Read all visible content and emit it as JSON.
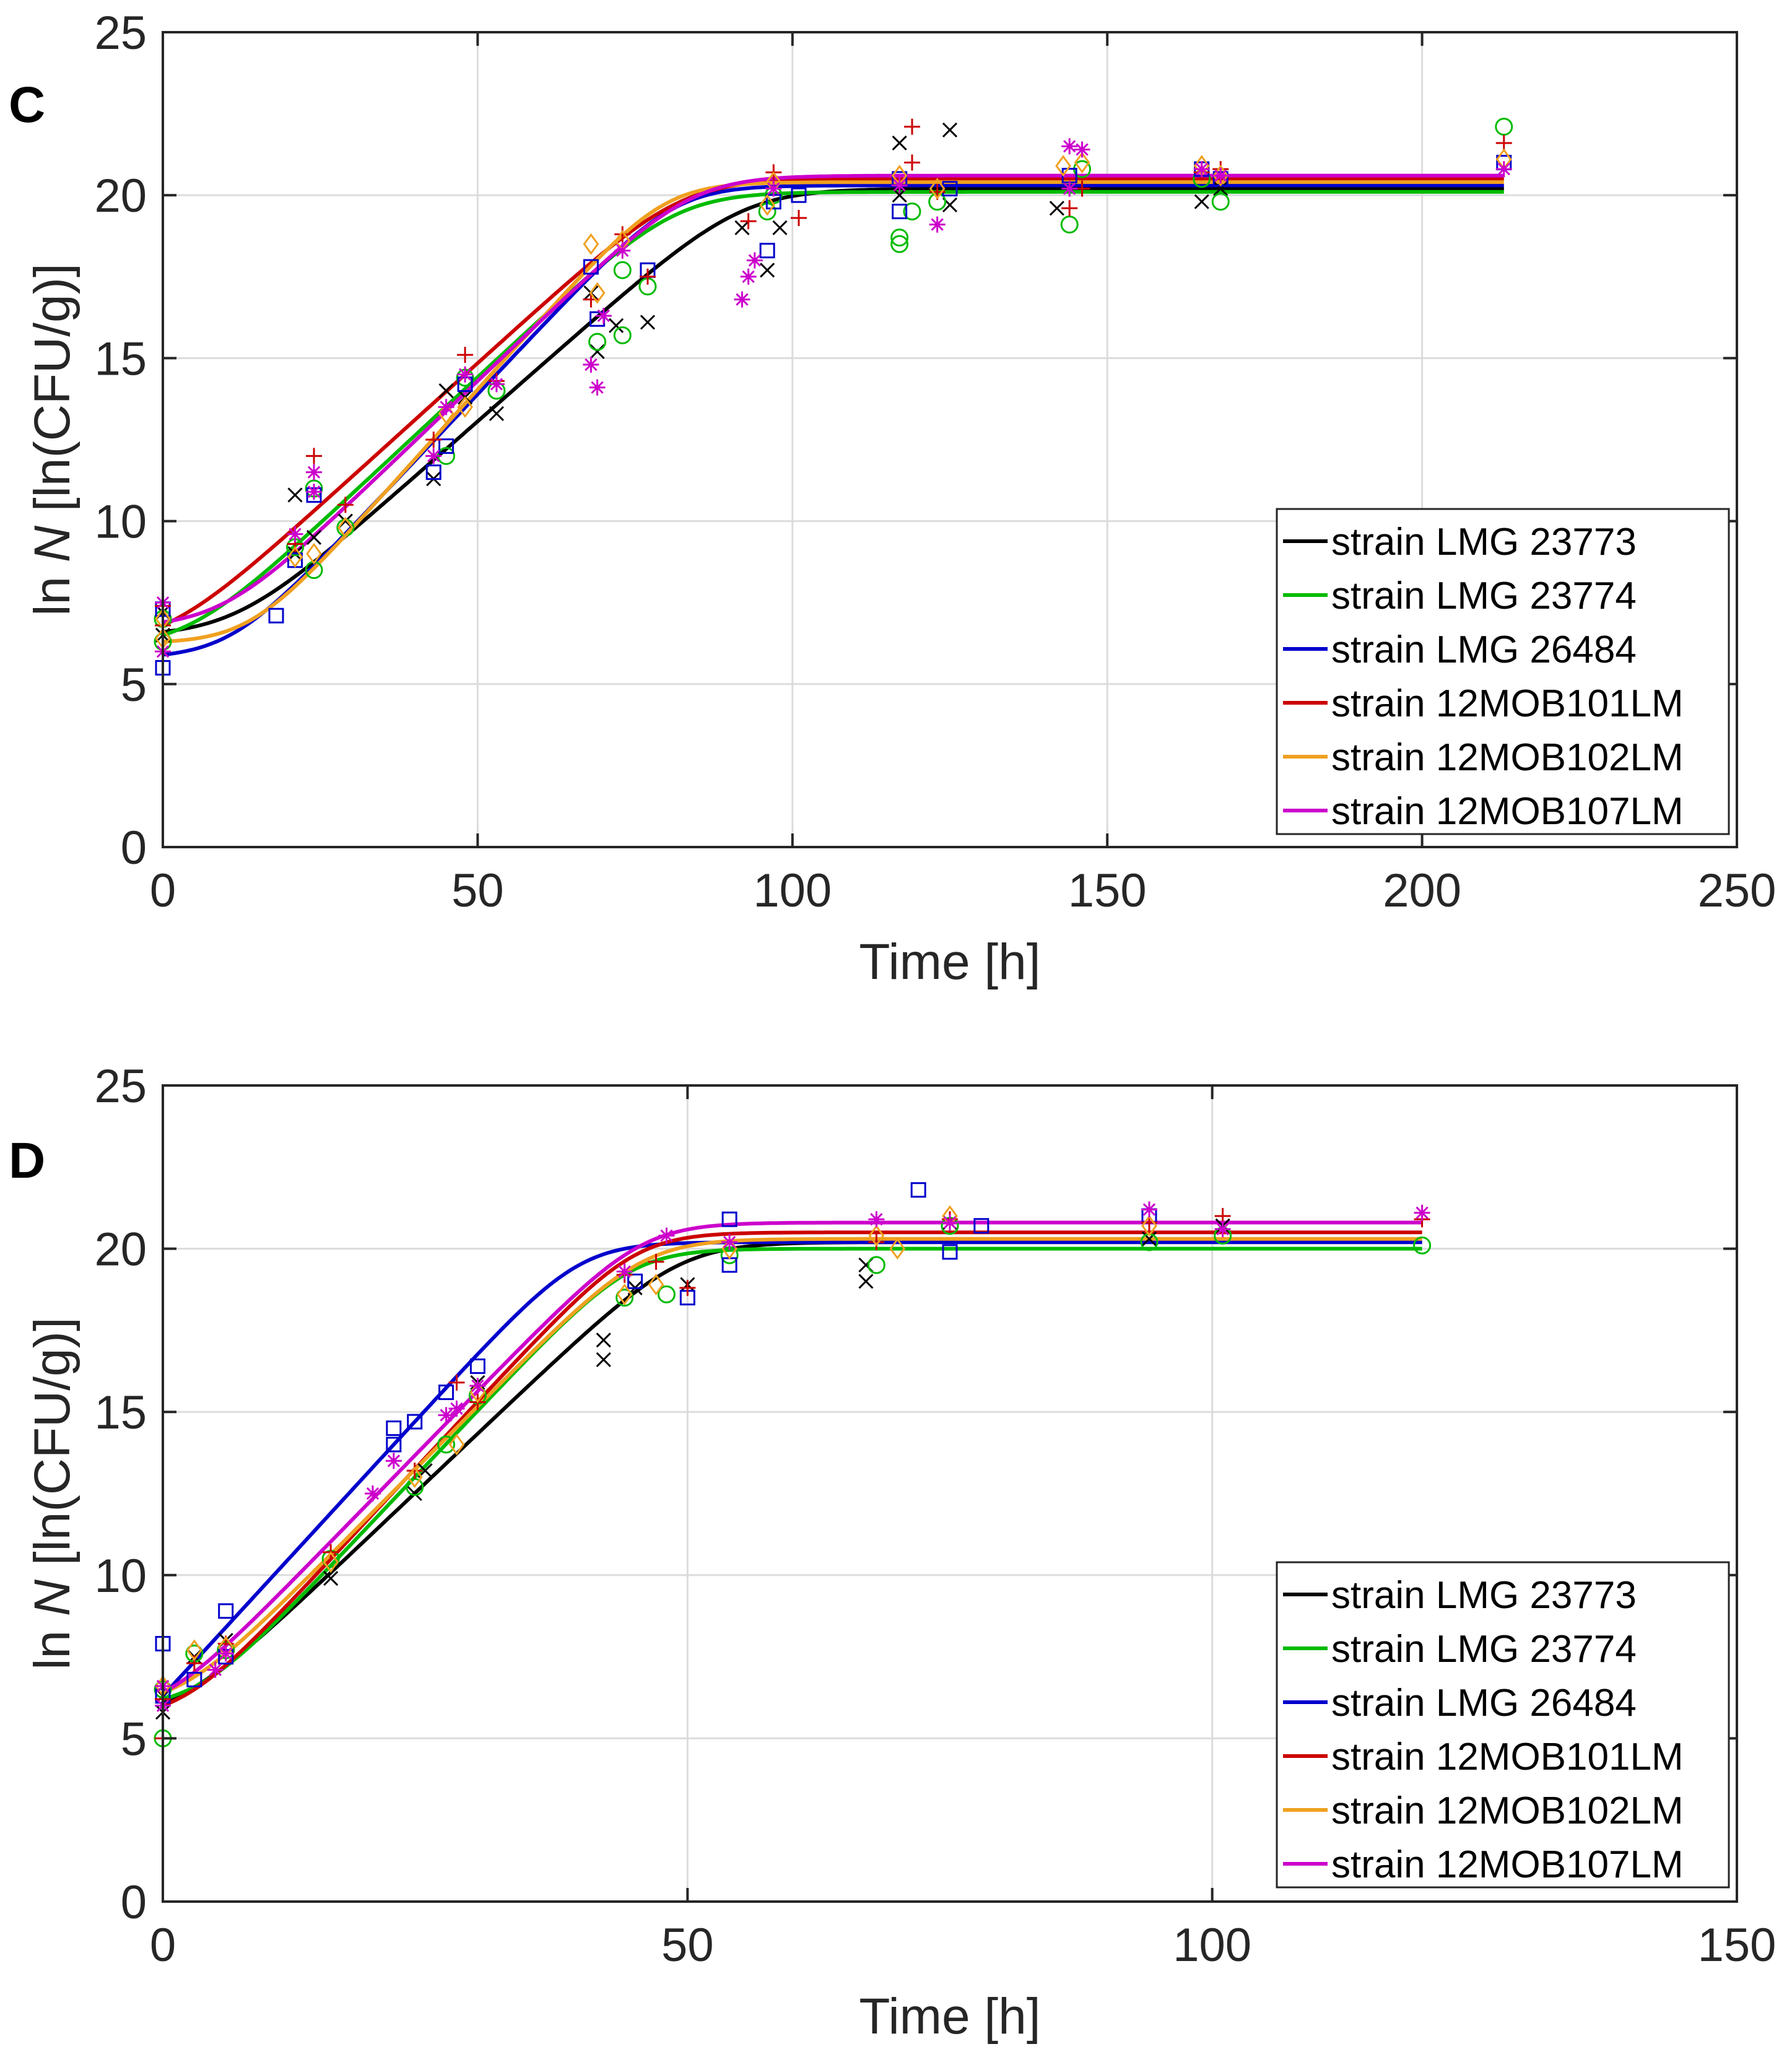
{
  "chart_data": [
    {
      "panel": "C",
      "type": "line",
      "title": "",
      "xlabel": "Time [h]",
      "ylabel_prefix": "ln ",
      "ylabel_var": "N",
      "ylabel_suffix": " [ln(CFU/g)]",
      "xlim": [
        0,
        250
      ],
      "ylim": [
        0,
        25
      ],
      "xticks": [
        "0",
        "50",
        "100",
        "150",
        "200",
        "250"
      ],
      "yticks": [
        "0",
        "5",
        "10",
        "15",
        "20",
        "25"
      ],
      "grid": true,
      "legend_position": "bottom-right",
      "curve_x_end": 213,
      "series": [
        {
          "name": "strain LMG 23773",
          "color": "#000000",
          "marker": "x",
          "model": {
            "y0": 6.6,
            "ymax": 20.2,
            "mu": 0.17,
            "lag": 12
          },
          "points": [
            [
              0,
              6.5
            ],
            [
              0,
              7.2
            ],
            [
              21,
              10.8
            ],
            [
              21,
              9.0
            ],
            [
              24,
              9.5
            ],
            [
              29,
              10.0
            ],
            [
              43,
              11.3
            ],
            [
              45,
              14.0
            ],
            [
              48,
              13.8
            ],
            [
              53,
              13.3
            ],
            [
              68,
              17.0
            ],
            [
              69,
              15.2
            ],
            [
              72,
              16.0
            ],
            [
              77,
              16.1
            ],
            [
              92,
              19.0
            ],
            [
              96,
              17.7
            ],
            [
              98,
              19.0
            ],
            [
              117,
              21.6
            ],
            [
              117,
              20.0
            ],
            [
              125,
              22.0
            ],
            [
              125,
              19.7
            ],
            [
              142,
              19.6
            ],
            [
              165,
              19.8
            ],
            [
              168,
              20.2
            ]
          ]
        },
        {
          "name": "strain LMG 23774",
          "color": "#00bb00",
          "marker": "o",
          "model": {
            "y0": 6.5,
            "ymax": 20.1,
            "mu": 0.18,
            "lag": 6
          },
          "points": [
            [
              0,
              6.3
            ],
            [
              0,
              7.0
            ],
            [
              21,
              9.2
            ],
            [
              24,
              8.5
            ],
            [
              24,
              11.0
            ],
            [
              29,
              9.8
            ],
            [
              45,
              12.0
            ],
            [
              48,
              14.4
            ],
            [
              53,
              14.0
            ],
            [
              69,
              15.5
            ],
            [
              73,
              15.7
            ],
            [
              73,
              17.7
            ],
            [
              77,
              17.2
            ],
            [
              96,
              19.5
            ],
            [
              97,
              20.0
            ],
            [
              117,
              18.5
            ],
            [
              117,
              18.7
            ],
            [
              119,
              19.5
            ],
            [
              123,
              19.8
            ],
            [
              144,
              19.1
            ],
            [
              146,
              20.8
            ],
            [
              165,
              20.5
            ],
            [
              168,
              19.8
            ],
            [
              213,
              22.1
            ]
          ]
        },
        {
          "name": "strain LMG 26484",
          "color": "#0000cc",
          "marker": "s",
          "model": {
            "y0": 5.9,
            "ymax": 20.3,
            "mu": 0.205,
            "lag": 11
          },
          "points": [
            [
              0,
              5.5
            ],
            [
              0,
              7.3
            ],
            [
              18,
              7.1
            ],
            [
              21,
              8.8
            ],
            [
              24,
              10.8
            ],
            [
              43,
              11.5
            ],
            [
              45,
              12.3
            ],
            [
              48,
              14.2
            ],
            [
              68,
              17.8
            ],
            [
              69,
              16.2
            ],
            [
              77,
              17.7
            ],
            [
              96,
              18.3
            ],
            [
              97,
              19.8
            ],
            [
              101,
              20.0
            ],
            [
              117,
              20.5
            ],
            [
              117,
              19.5
            ],
            [
              125,
              20.2
            ],
            [
              144,
              20.6
            ],
            [
              165,
              20.8
            ],
            [
              168,
              20.5
            ],
            [
              213,
              21.0
            ]
          ]
        },
        {
          "name": "strain 12MOB101LM",
          "color": "#cc0000",
          "marker": "+",
          "model": {
            "y0": 6.8,
            "ymax": 20.5,
            "mu": 0.175,
            "lag": 4
          },
          "points": [
            [
              0,
              6.8
            ],
            [
              0,
              7.4
            ],
            [
              21,
              9.3
            ],
            [
              24,
              12.0
            ],
            [
              29,
              10.5
            ],
            [
              43,
              12.5
            ],
            [
              48,
              15.1
            ],
            [
              53,
              14.3
            ],
            [
              68,
              16.8
            ],
            [
              73,
              18.8
            ],
            [
              77,
              17.5
            ],
            [
              93,
              19.2
            ],
            [
              97,
              20.7
            ],
            [
              101,
              19.3
            ],
            [
              119,
              22.1
            ],
            [
              119,
              21.0
            ],
            [
              123,
              20.1
            ],
            [
              144,
              19.6
            ],
            [
              146,
              20.2
            ],
            [
              165,
              20.7
            ],
            [
              168,
              20.8
            ],
            [
              213,
              21.6
            ]
          ]
        },
        {
          "name": "strain 12MOB102LM",
          "color": "#f0a020",
          "marker": "d",
          "model": {
            "y0": 6.3,
            "ymax": 20.4,
            "mu": 0.215,
            "lag": 14
          },
          "points": [
            [
              0,
              6.4
            ],
            [
              0,
              7.0
            ],
            [
              21,
              8.9
            ],
            [
              24,
              9.0
            ],
            [
              29,
              9.8
            ],
            [
              45,
              13.3
            ],
            [
              48,
              13.5
            ],
            [
              68,
              18.5
            ],
            [
              69,
              17.0
            ],
            [
              73,
              18.6
            ],
            [
              96,
              19.7
            ],
            [
              97,
              20.4
            ],
            [
              117,
              20.6
            ],
            [
              123,
              20.2
            ],
            [
              143,
              20.9
            ],
            [
              146,
              21.0
            ],
            [
              165,
              20.9
            ],
            [
              168,
              20.6
            ],
            [
              213,
              21.1
            ]
          ]
        },
        {
          "name": "strain 12MOB107LM",
          "color": "#cc00cc",
          "marker": "*",
          "model": {
            "y0": 6.9,
            "ymax": 20.6,
            "mu": 0.185,
            "lag": 10
          },
          "points": [
            [
              0,
              7.5
            ],
            [
              0,
              6.0
            ],
            [
              21,
              9.6
            ],
            [
              24,
              11.5
            ],
            [
              24,
              10.9
            ],
            [
              43,
              12.0
            ],
            [
              45,
              13.5
            ],
            [
              48,
              14.5
            ],
            [
              53,
              14.2
            ],
            [
              68,
              14.8
            ],
            [
              69,
              14.1
            ],
            [
              70,
              16.3
            ],
            [
              73,
              18.3
            ],
            [
              92,
              16.8
            ],
            [
              93,
              17.5
            ],
            [
              94,
              18.0
            ],
            [
              97,
              20.2
            ],
            [
              117,
              20.3
            ],
            [
              123,
              19.1
            ],
            [
              144,
              21.5
            ],
            [
              144,
              20.2
            ],
            [
              146,
              21.4
            ],
            [
              165,
              20.8
            ],
            [
              168,
              20.6
            ],
            [
              213,
              20.8
            ]
          ]
        }
      ]
    },
    {
      "panel": "D",
      "type": "line",
      "title": "",
      "xlabel": "Time [h]",
      "ylabel_prefix": "ln ",
      "ylabel_var": "N",
      "ylabel_suffix": " [ln(CFU/g)]",
      "xlim": [
        0,
        150
      ],
      "ylim": [
        0,
        25
      ],
      "xticks": [
        "0",
        "50",
        "100",
        "150"
      ],
      "yticks": [
        "0",
        "5",
        "10",
        "15",
        "20",
        "25"
      ],
      "grid": true,
      "legend_position": "bottom-right",
      "curve_x_end": 120,
      "series": [
        {
          "name": "strain LMG 23773",
          "color": "#000000",
          "marker": "x",
          "model": {
            "y0": 6.1,
            "ymax": 20.2,
            "mu": 0.305,
            "lag": 3
          },
          "points": [
            [
              0,
              5.8
            ],
            [
              0,
              6.3
            ],
            [
              3,
              7.5
            ],
            [
              6,
              8.0
            ],
            [
              16,
              9.9
            ],
            [
              24,
              12.5
            ],
            [
              25,
              13.2
            ],
            [
              30,
              15.9
            ],
            [
              42,
              16.6
            ],
            [
              42,
              17.2
            ],
            [
              45,
              18.8
            ],
            [
              50,
              18.9
            ],
            [
              67,
              19.0
            ],
            [
              67,
              19.5
            ],
            [
              75,
              20.8
            ],
            [
              94,
              20.3
            ],
            [
              101,
              20.7
            ]
          ]
        },
        {
          "name": "strain LMG 23774",
          "color": "#00bb00",
          "marker": "o",
          "model": {
            "y0": 6.2,
            "ymax": 20.0,
            "mu": 0.34,
            "lag": 4
          },
          "points": [
            [
              0,
              5.0
            ],
            [
              0,
              6.5
            ],
            [
              3,
              7.6
            ],
            [
              6,
              7.7
            ],
            [
              16,
              10.5
            ],
            [
              24,
              12.7
            ],
            [
              27,
              14.0
            ],
            [
              30,
              15.5
            ],
            [
              44,
              18.5
            ],
            [
              48,
              18.6
            ],
            [
              54,
              19.8
            ],
            [
              68,
              19.5
            ],
            [
              75,
              20.7
            ],
            [
              94,
              20.2
            ],
            [
              101,
              20.4
            ],
            [
              120,
              20.1
            ]
          ]
        },
        {
          "name": "strain LMG 26484",
          "color": "#0000cc",
          "marker": "s",
          "model": {
            "y0": 6.3,
            "ymax": 20.2,
            "mu": 0.35,
            "lag": 0
          },
          "points": [
            [
              0,
              7.9
            ],
            [
              0,
              6.3
            ],
            [
              3,
              6.8
            ],
            [
              6,
              7.5
            ],
            [
              6,
              8.9
            ],
            [
              22,
              14.0
            ],
            [
              22,
              14.5
            ],
            [
              24,
              14.7
            ],
            [
              27,
              15.6
            ],
            [
              30,
              16.4
            ],
            [
              45,
              19.0
            ],
            [
              50,
              18.5
            ],
            [
              54,
              19.5
            ],
            [
              54,
              20.9
            ],
            [
              72,
              21.8
            ],
            [
              75,
              19.9
            ],
            [
              78,
              20.7
            ],
            [
              94,
              21.0
            ]
          ]
        },
        {
          "name": "strain 12MOB101LM",
          "color": "#cc0000",
          "marker": "+",
          "model": {
            "y0": 6.0,
            "ymax": 20.5,
            "mu": 0.345,
            "lag": 3
          },
          "points": [
            [
              0,
              6.2
            ],
            [
              0,
              5.0
            ],
            [
              3,
              7.3
            ],
            [
              6,
              7.9
            ],
            [
              16,
              10.7
            ],
            [
              24,
              13.2
            ],
            [
              28,
              15.9
            ],
            [
              30,
              15.3
            ],
            [
              44,
              19.2
            ],
            [
              47,
              19.6
            ],
            [
              50,
              18.8
            ],
            [
              68,
              20.2
            ],
            [
              75,
              20.9
            ],
            [
              94,
              20.8
            ],
            [
              101,
              21.0
            ],
            [
              120,
              20.9
            ]
          ]
        },
        {
          "name": "strain 12MOB102LM",
          "color": "#f0a020",
          "marker": "d",
          "model": {
            "y0": 6.4,
            "ymax": 20.3,
            "mu": 0.325,
            "lag": 3
          },
          "points": [
            [
              0,
              6.6
            ],
            [
              3,
              7.7
            ],
            [
              6,
              7.8
            ],
            [
              16,
              10.4
            ],
            [
              24,
              13.0
            ],
            [
              28,
              14.0
            ],
            [
              30,
              15.6
            ],
            [
              44,
              18.6
            ],
            [
              47,
              18.9
            ],
            [
              54,
              20.0
            ],
            [
              68,
              20.4
            ],
            [
              70,
              20.0
            ],
            [
              75,
              21.0
            ],
            [
              94,
              20.7
            ]
          ]
        },
        {
          "name": "strain 12MOB107LM",
          "color": "#cc00cc",
          "marker": "*",
          "model": {
            "y0": 6.4,
            "ymax": 20.8,
            "mu": 0.33,
            "lag": 2
          },
          "points": [
            [
              0,
              6.6
            ],
            [
              0,
              6.0
            ],
            [
              5,
              7.1
            ],
            [
              6,
              7.6
            ],
            [
              20,
              12.5
            ],
            [
              22,
              13.5
            ],
            [
              27,
              14.9
            ],
            [
              28,
              15.1
            ],
            [
              30,
              15.8
            ],
            [
              44,
              19.3
            ],
            [
              48,
              20.4
            ],
            [
              54,
              20.2
            ],
            [
              68,
              20.9
            ],
            [
              75,
              20.8
            ],
            [
              94,
              21.2
            ],
            [
              101,
              20.6
            ],
            [
              120,
              21.1
            ]
          ]
        }
      ]
    }
  ]
}
